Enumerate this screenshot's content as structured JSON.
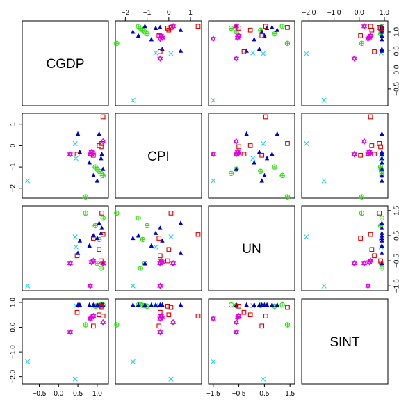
{
  "chart_data": {
    "type": "scatter",
    "kind": "scatterplot-matrix",
    "variables": [
      "CGDP",
      "CPI",
      "UN",
      "SINT"
    ],
    "axes": {
      "CGDP": {
        "min": -0.85,
        "max": 1.2,
        "ticks": [
          -0.5,
          0.0,
          0.5,
          1.0
        ],
        "tick_labels": [
          "-0.5",
          "0.0",
          "0.5",
          "1.0"
        ]
      },
      "CPI": {
        "min": -2.3,
        "max": 1.35,
        "ticks": [
          -2,
          -1,
          0,
          1
        ],
        "tick_labels": [
          "-2",
          "-1",
          "0",
          "1"
        ]
      },
      "UN": {
        "min": -1.55,
        "max": 1.55,
        "ticks": [
          -1.5,
          -0.5,
          0.5,
          1.5
        ],
        "tick_labels": [
          "-1.5",
          "-0.5",
          "0.5",
          "1.5"
        ]
      },
      "SINT": {
        "min": -2.15,
        "max": 1.0,
        "ticks": [
          -2.0,
          -1.0,
          0.0,
          1.0
        ],
        "tick_labels": [
          "-2.0",
          "-1.0",
          "0.0",
          "1.0"
        ]
      }
    },
    "groups": [
      {
        "id": "g1",
        "marker": "x-cross",
        "color": "#22d3e6"
      },
      {
        "id": "g2",
        "marker": "circle-plus",
        "color": "#33dd11"
      },
      {
        "id": "g3",
        "marker": "triangle",
        "color": "#0000cc"
      },
      {
        "id": "g4",
        "marker": "square",
        "color": "#e00000"
      },
      {
        "id": "g5",
        "marker": "star-of-david",
        "color": "#e000e0"
      }
    ],
    "points": [
      {
        "group": "g1",
        "CGDP": -0.8,
        "CPI": -1.65,
        "UN": -1.5,
        "SINT": -1.4
      },
      {
        "group": "g1",
        "CGDP": 0.43,
        "CPI": 0.1,
        "UN": 0.45,
        "SINT": -2.1
      },
      {
        "group": "g1",
        "CGDP": 0.45,
        "CPI": -0.6,
        "UN": 0.05,
        "SINT": 0.87
      },
      {
        "group": "g2",
        "CGDP": 1.0,
        "CPI": -1.1,
        "UN": -0.6,
        "SINT": 0.87
      },
      {
        "group": "g2",
        "CGDP": 1.05,
        "CPI": -1.2,
        "UN": 0.35,
        "SINT": 0.88
      },
      {
        "group": "g2",
        "CGDP": 1.1,
        "CPI": -1.3,
        "UN": -0.8,
        "SINT": 0.9
      },
      {
        "group": "g2",
        "CGDP": 1.15,
        "CPI": -1.4,
        "UN": 1.2,
        "SINT": 0.9
      },
      {
        "group": "g2",
        "CGDP": 0.95,
        "CPI": -1.0,
        "UN": 0.9,
        "SINT": 0.85
      },
      {
        "group": "g2",
        "CGDP": 0.7,
        "CPI": -2.4,
        "UN": 1.4,
        "SINT": 0.1
      },
      {
        "group": "g3",
        "CGDP": 0.5,
        "CPI": 0.55,
        "UN": -0.2,
        "SINT": 0.9
      },
      {
        "group": "g3",
        "CGDP": 0.55,
        "CPI": -0.3,
        "UN": 0.3,
        "SINT": 0.9
      },
      {
        "group": "g3",
        "CGDP": 0.8,
        "CPI": -0.8,
        "UN": 0.1,
        "SINT": 0.9
      },
      {
        "group": "g3",
        "CGDP": 0.9,
        "CPI": -1.4,
        "UN": 0.5,
        "SINT": 0.9
      },
      {
        "group": "g3",
        "CGDP": 1.05,
        "CPI": 0.55,
        "UN": 1.0,
        "SINT": 0.9
      },
      {
        "group": "g3",
        "CGDP": 1.1,
        "CPI": -0.6,
        "UN": 0.6,
        "SINT": 0.9
      },
      {
        "group": "g3",
        "CGDP": 1.12,
        "CPI": -0.4,
        "UN": 0.8,
        "SINT": 0.9
      },
      {
        "group": "g3",
        "CGDP": 1.15,
        "CPI": -1.1,
        "UN": -0.6,
        "SINT": 0.9
      },
      {
        "group": "g3",
        "CGDP": 1.0,
        "CPI": -1.65,
        "UN": 0.4,
        "SINT": 0.9
      },
      {
        "group": "g4",
        "CGDP": 1.15,
        "CPI": 1.35,
        "UN": 0.55,
        "SINT": 0.45
      },
      {
        "group": "g4",
        "CGDP": 0.48,
        "CPI": -0.4,
        "UN": -0.3,
        "SINT": 0.6
      },
      {
        "group": "g4",
        "CGDP": 0.9,
        "CPI": -0.45,
        "UN": 0.4,
        "SINT": 0.05
      },
      {
        "group": "g4",
        "CGDP": 1.05,
        "CPI": 0.0,
        "UN": -0.05,
        "SINT": 0.5
      },
      {
        "group": "g4",
        "CGDP": 1.12,
        "CPI": 0.1,
        "UN": 1.4,
        "SINT": 0.8
      },
      {
        "group": "g4",
        "CGDP": 1.1,
        "CPI": -0.05,
        "UN": -0.5,
        "SINT": 0.85
      },
      {
        "group": "g5",
        "CGDP": 0.3,
        "CPI": -0.4,
        "UN": -0.6,
        "SINT": -0.2
      },
      {
        "group": "g5",
        "CGDP": 0.82,
        "CPI": -0.4,
        "UN": -1.5,
        "SINT": 0.35
      },
      {
        "group": "g5",
        "CGDP": 1.15,
        "CPI": 0.2,
        "UN": -0.6,
        "SINT": 0.2
      },
      {
        "group": "g5",
        "CGDP": 0.85,
        "CPI": -0.3,
        "UN": -0.55,
        "SINT": 0.4
      },
      {
        "group": "g5",
        "CGDP": 0.9,
        "CPI": -0.35,
        "UN": -0.5,
        "SINT": 0.45
      }
    ]
  }
}
